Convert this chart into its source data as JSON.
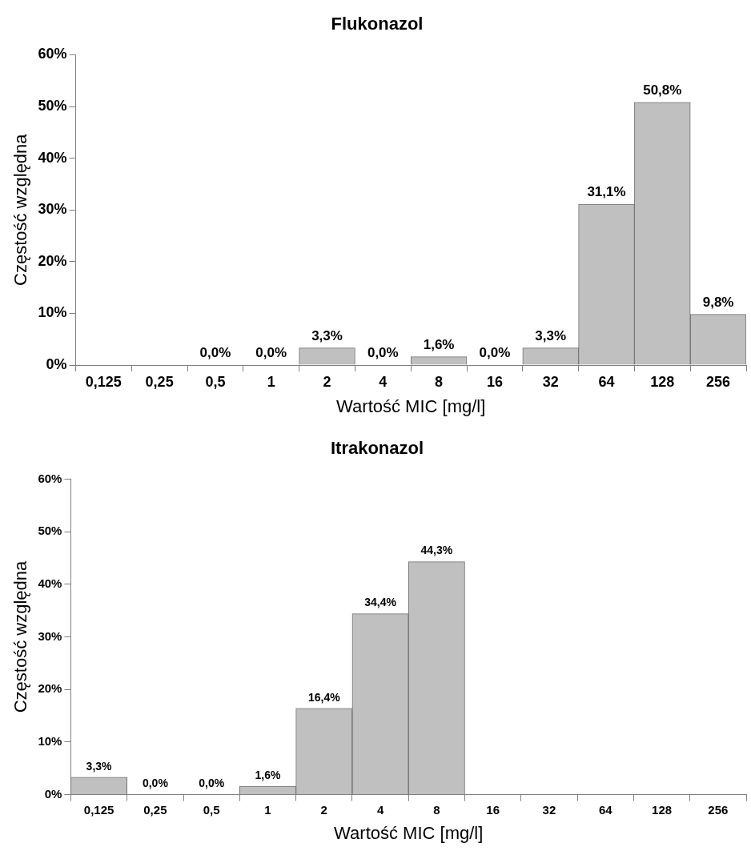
{
  "chart_data": [
    {
      "type": "bar",
      "title": "Flukonazol",
      "xlabel": "Wartość MIC [mg/l]",
      "ylabel": "Częstość względna",
      "categories": [
        "0,125",
        "0,25",
        "0,5",
        "1",
        "2",
        "4",
        "8",
        "16",
        "32",
        "64",
        "128",
        "256"
      ],
      "values": [
        null,
        null,
        0.0,
        0.0,
        3.3,
        0.0,
        1.6,
        0.0,
        3.3,
        31.1,
        50.8,
        9.8
      ],
      "value_labels": [
        null,
        null,
        "0,0%",
        "0,0%",
        "3,3%",
        "0,0%",
        "1,6%",
        "0,0%",
        "3,3%",
        "31,1%",
        "50,8%",
        "9,8%"
      ],
      "color": "#c0c0c0",
      "ylim": [
        0,
        60
      ],
      "yticks": [
        {
          "value": 0,
          "label": "0%"
        },
        {
          "value": 10,
          "label": "10%"
        },
        {
          "value": 20,
          "label": "20%"
        },
        {
          "value": 30,
          "label": "30%"
        },
        {
          "value": 40,
          "label": "40%"
        },
        {
          "value": 50,
          "label": "50%"
        },
        {
          "value": 60,
          "label": "60%"
        }
      ],
      "grid": false,
      "legend": false
    },
    {
      "type": "bar",
      "title": "Itrakonazol",
      "xlabel": "Wartość MIC [mg/l]",
      "ylabel": "Częstość względna",
      "categories": [
        "0,125",
        "0,25",
        "0,5",
        "1",
        "2",
        "4",
        "8",
        "16",
        "32",
        "64",
        "128",
        "256"
      ],
      "values": [
        3.3,
        0.0,
        0.0,
        1.6,
        16.4,
        34.4,
        44.3,
        null,
        null,
        null,
        null,
        null
      ],
      "value_labels": [
        "3,3%",
        "0,0%",
        "0,0%",
        "1,6%",
        "16,4%",
        "34,4%",
        "44,3%",
        null,
        null,
        null,
        null,
        null
      ],
      "color": "#c0c0c0",
      "ylim": [
        0,
        60
      ],
      "yticks": [
        {
          "value": 0,
          "label": "0%"
        },
        {
          "value": 10,
          "label": "10%"
        },
        {
          "value": 20,
          "label": "20%"
        },
        {
          "value": 30,
          "label": "30%"
        },
        {
          "value": 40,
          "label": "40%"
        },
        {
          "value": 50,
          "label": "50%"
        },
        {
          "value": 60,
          "label": "60%"
        }
      ],
      "grid": false,
      "legend": false
    }
  ]
}
